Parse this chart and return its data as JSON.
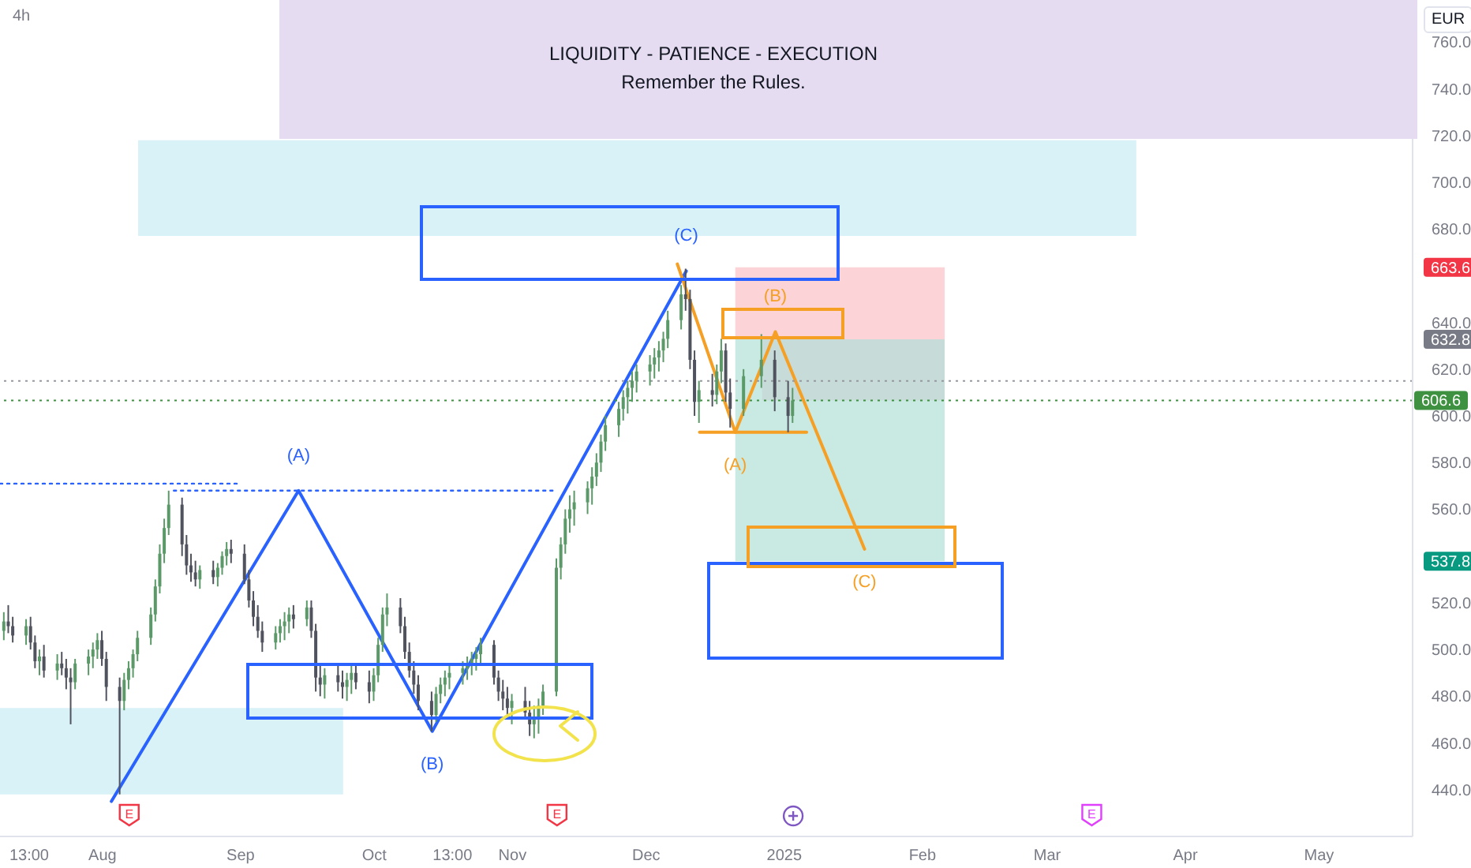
{
  "chart_data": {
    "type": "candlestick",
    "title": "4h",
    "ylabel": "EUR",
    "x": [
      "2024-07-10",
      "2024-07-11",
      "2024-07-12",
      "2024-07-15",
      "2024-07-16",
      "2024-07-17",
      "2024-07-18",
      "2024-07-19",
      "2024-07-22",
      "2024-07-23",
      "2024-07-24",
      "2024-07-25",
      "2024-07-26",
      "2024-07-29",
      "2024-07-30",
      "2024-07-31",
      "2024-08-01",
      "2024-08-02",
      "2024-08-05",
      "2024-08-06",
      "2024-08-07",
      "2024-08-08",
      "2024-08-09",
      "2024-08-12",
      "2024-08-13",
      "2024-08-14",
      "2024-08-15",
      "2024-08-16",
      "2024-08-19",
      "2024-08-20",
      "2024-08-21",
      "2024-08-22",
      "2024-08-23",
      "2024-08-26",
      "2024-08-27",
      "2024-08-28",
      "2024-08-29",
      "2024-08-30",
      "2024-09-02",
      "2024-09-03",
      "2024-09-04",
      "2024-09-05",
      "2024-09-06",
      "2024-09-09",
      "2024-09-10",
      "2024-09-11",
      "2024-09-12",
      "2024-09-13",
      "2024-09-16",
      "2024-09-17",
      "2024-09-18",
      "2024-09-19",
      "2024-09-20",
      "2024-09-23",
      "2024-09-24",
      "2024-09-25",
      "2024-09-26",
      "2024-09-27",
      "2024-09-30",
      "2024-10-01",
      "2024-10-02",
      "2024-10-03",
      "2024-10-04",
      "2024-10-07",
      "2024-10-08",
      "2024-10-09",
      "2024-10-10",
      "2024-10-11",
      "2024-10-14",
      "2024-10-15",
      "2024-10-16",
      "2024-10-17",
      "2024-10-18",
      "2024-10-21",
      "2024-10-22",
      "2024-10-23",
      "2024-10-24",
      "2024-10-25",
      "2024-10-28",
      "2024-10-29",
      "2024-10-30",
      "2024-10-31",
      "2024-11-01",
      "2024-11-04",
      "2024-11-05",
      "2024-11-06",
      "2024-11-07",
      "2024-11-08",
      "2024-11-11",
      "2024-11-12",
      "2024-11-13",
      "2024-11-14",
      "2024-11-15",
      "2024-11-18",
      "2024-11-19",
      "2024-11-20",
      "2024-11-21",
      "2024-11-22",
      "2024-11-25",
      "2024-11-26",
      "2024-11-27",
      "2024-11-28",
      "2024-11-29",
      "2024-12-02",
      "2024-12-03",
      "2024-12-04",
      "2024-12-05",
      "2024-12-06",
      "2024-12-09",
      "2024-12-10",
      "2024-12-11",
      "2024-12-12",
      "2024-12-13",
      "2024-12-16",
      "2024-12-17",
      "2024-12-18",
      "2024-12-19",
      "2024-12-20",
      "2024-12-23",
      "2024-12-27",
      "2024-12-30",
      "2025-01-02",
      "2025-01-03"
    ],
    "ohlc": [
      [
        508,
        516,
        504,
        512
      ],
      [
        512,
        519,
        507,
        510
      ],
      [
        510,
        514,
        503,
        506
      ],
      [
        506,
        513,
        502,
        510
      ],
      [
        510,
        514,
        500,
        503
      ],
      [
        503,
        506,
        492,
        495
      ],
      [
        495,
        500,
        489,
        497
      ],
      [
        497,
        502,
        488,
        491
      ],
      [
        491,
        498,
        487,
        494
      ],
      [
        494,
        499,
        489,
        492
      ],
      [
        492,
        496,
        483,
        488
      ],
      [
        488,
        492,
        468,
        486
      ],
      [
        486,
        496,
        483,
        494
      ],
      [
        494,
        500,
        489,
        497
      ],
      [
        497,
        503,
        492,
        500
      ],
      [
        500,
        507,
        496,
        504
      ],
      [
        504,
        508,
        493,
        496
      ],
      [
        496,
        499,
        478,
        484
      ],
      [
        484,
        488,
        438,
        478
      ],
      [
        478,
        490,
        474,
        487
      ],
      [
        487,
        495,
        483,
        492
      ],
      [
        492,
        500,
        488,
        498
      ],
      [
        498,
        508,
        495,
        505
      ],
      [
        505,
        518,
        502,
        515
      ],
      [
        515,
        530,
        512,
        527
      ],
      [
        527,
        545,
        524,
        541
      ],
      [
        541,
        556,
        537,
        552
      ],
      [
        552,
        568,
        549,
        562
      ],
      [
        562,
        565,
        540,
        545
      ],
      [
        545,
        549,
        532,
        536
      ],
      [
        536,
        541,
        529,
        533
      ],
      [
        533,
        538,
        527,
        530
      ],
      [
        530,
        536,
        526,
        534
      ],
      [
        534,
        538,
        528,
        531
      ],
      [
        531,
        537,
        527,
        535
      ],
      [
        535,
        542,
        532,
        540
      ],
      [
        540,
        546,
        536,
        543
      ],
      [
        543,
        547,
        537,
        541
      ],
      [
        541,
        545,
        528,
        530
      ],
      [
        530,
        534,
        518,
        521
      ],
      [
        521,
        525,
        510,
        514
      ],
      [
        514,
        519,
        505,
        508
      ],
      [
        508,
        512,
        499,
        503
      ],
      [
        503,
        510,
        500,
        507
      ],
      [
        507,
        513,
        503,
        510
      ],
      [
        510,
        516,
        504,
        512
      ],
      [
        512,
        518,
        507,
        515
      ],
      [
        515,
        519,
        509,
        513
      ],
      [
        513,
        521,
        510,
        518
      ],
      [
        518,
        521,
        505,
        508
      ],
      [
        508,
        511,
        482,
        488
      ],
      [
        488,
        494,
        480,
        485
      ],
      [
        485,
        492,
        479,
        489
      ],
      [
        489,
        494,
        482,
        486
      ],
      [
        486,
        491,
        479,
        484
      ],
      [
        484,
        490,
        478,
        487
      ],
      [
        487,
        493,
        481,
        490
      ],
      [
        490,
        494,
        483,
        486
      ],
      [
        486,
        491,
        477,
        482
      ],
      [
        482,
        492,
        478,
        489
      ],
      [
        489,
        505,
        486,
        502
      ],
      [
        502,
        518,
        499,
        515
      ],
      [
        515,
        524,
        510,
        518
      ],
      [
        518,
        522,
        507,
        510
      ],
      [
        510,
        514,
        496,
        499
      ],
      [
        499,
        503,
        488,
        491
      ],
      [
        491,
        495,
        481,
        485
      ],
      [
        485,
        489,
        474,
        478
      ],
      [
        478,
        482,
        465,
        472
      ],
      [
        472,
        484,
        469,
        481
      ],
      [
        481,
        488,
        477,
        485
      ],
      [
        485,
        491,
        480,
        488
      ],
      [
        488,
        493,
        483,
        490
      ],
      [
        490,
        495,
        485,
        492
      ],
      [
        492,
        497,
        487,
        494
      ],
      [
        494,
        499,
        489,
        496
      ],
      [
        496,
        501,
        491,
        498
      ],
      [
        498,
        505,
        494,
        502
      ],
      [
        502,
        504,
        485,
        488
      ],
      [
        488,
        491,
        478,
        482
      ],
      [
        482,
        487,
        474,
        479
      ],
      [
        479,
        484,
        470,
        475
      ],
      [
        475,
        481,
        468,
        478
      ],
      [
        478,
        484,
        470,
        473
      ],
      [
        473,
        478,
        463,
        468
      ],
      [
        468,
        476,
        462,
        471
      ],
      [
        471,
        479,
        464,
        476
      ],
      [
        476,
        485,
        472,
        482
      ],
      [
        482,
        539,
        480,
        535
      ],
      [
        535,
        548,
        530,
        545
      ],
      [
        545,
        560,
        541,
        556
      ],
      [
        556,
        566,
        550,
        560
      ],
      [
        560,
        568,
        553,
        563
      ],
      [
        563,
        572,
        558,
        569
      ],
      [
        569,
        578,
        562,
        574
      ],
      [
        574,
        584,
        570,
        580
      ],
      [
        580,
        592,
        576,
        589
      ],
      [
        589,
        600,
        585,
        596
      ],
      [
        596,
        606,
        591,
        603
      ],
      [
        603,
        611,
        598,
        608
      ],
      [
        608,
        615,
        601,
        612
      ],
      [
        612,
        619,
        606,
        615
      ],
      [
        615,
        622,
        610,
        619
      ],
      [
        619,
        626,
        613,
        622
      ],
      [
        622,
        629,
        616,
        625
      ],
      [
        625,
        632,
        619,
        628
      ],
      [
        628,
        636,
        623,
        633
      ],
      [
        633,
        645,
        629,
        641
      ],
      [
        641,
        656,
        637,
        652
      ],
      [
        652,
        663,
        645,
        650
      ],
      [
        650,
        654,
        620,
        624
      ],
      [
        624,
        628,
        600,
        606
      ],
      [
        606,
        615,
        597,
        611
      ],
      [
        611,
        618,
        604,
        609
      ],
      [
        609,
        622,
        605,
        619
      ],
      [
        619,
        633,
        614,
        628
      ],
      [
        628,
        631,
        606,
        610
      ],
      [
        610,
        616,
        595,
        603
      ],
      [
        603,
        620,
        600,
        617
      ],
      [
        617,
        635,
        612,
        624
      ],
      [
        624,
        628,
        602,
        608
      ],
      [
        608,
        615,
        593,
        600
      ],
      [
        600,
        612,
        597,
        606.6
      ]
    ],
    "colors": [
      "#5b9a68",
      "#50535e",
      "#50535e",
      "#5b9a68",
      "#50535e",
      "#50535e",
      "#5b9a68",
      "#50535e",
      "#5b9a68",
      "#50535e",
      "#50535e",
      "#50535e",
      "#5b9a68",
      "#5b9a68",
      "#5b9a68",
      "#5b9a68",
      "#50535e",
      "#50535e",
      "#50535e",
      "#5b9a68",
      "#5b9a68",
      "#5b9a68",
      "#5b9a68",
      "#5b9a68",
      "#5b9a68",
      "#5b9a68",
      "#5b9a68",
      "#5b9a68",
      "#50535e",
      "#50535e",
      "#50535e",
      "#50535e",
      "#5b9a68",
      "#50535e",
      "#5b9a68",
      "#5b9a68",
      "#5b9a68",
      "#50535e",
      "#50535e",
      "#50535e",
      "#50535e",
      "#50535e",
      "#50535e",
      "#5b9a68",
      "#5b9a68",
      "#5b9a68",
      "#5b9a68",
      "#50535e",
      "#5b9a68",
      "#50535e",
      "#50535e",
      "#50535e",
      "#5b9a68",
      "#50535e",
      "#50535e",
      "#5b9a68",
      "#5b9a68",
      "#50535e",
      "#50535e",
      "#5b9a68",
      "#5b9a68",
      "#5b9a68",
      "#5b9a68",
      "#50535e",
      "#50535e",
      "#50535e",
      "#50535e",
      "#50535e",
      "#50535e",
      "#5b9a68",
      "#5b9a68",
      "#5b9a68",
      "#5b9a68",
      "#5b9a68",
      "#5b9a68",
      "#5b9a68",
      "#5b9a68",
      "#5b9a68",
      "#50535e",
      "#50535e",
      "#50535e",
      "#50535e",
      "#5b9a68",
      "#50535e",
      "#50535e",
      "#5b9a68",
      "#5b9a68",
      "#5b9a68",
      "#5b9a68",
      "#5b9a68",
      "#5b9a68",
      "#5b9a68",
      "#5b9a68",
      "#5b9a68",
      "#5b9a68",
      "#5b9a68",
      "#5b9a68",
      "#5b9a68",
      "#5b9a68",
      "#5b9a68",
      "#5b9a68",
      "#5b9a68",
      "#5b9a68",
      "#5b9a68",
      "#5b9a68",
      "#5b9a68",
      "#5b9a68",
      "#5b9a68",
      "#5b9a68",
      "#50535e",
      "#50535e",
      "#50535e",
      "#5b9a68",
      "#50535e",
      "#5b9a68",
      "#5b9a68",
      "#50535e",
      "#50535e",
      "#5b9a68",
      "#5b9a68",
      "#50535e",
      "#50535e",
      "#5b9a68"
    ],
    "series": [
      {
        "type": "line",
        "x": [
          "2024-08-09",
          "2025-03-21"
        ],
        "values": [
          null,
          null
        ],
        "lower": [
          677,
          677
        ],
        "upper": [
          718,
          718
        ],
        "color": "#4cc3d9"
      },
      {
        "type": "line",
        "x": [
          "2024-07-09",
          "2024-09-24"
        ],
        "values": [
          null,
          null
        ],
        "lower": [
          438,
          438
        ],
        "upper": [
          475,
          475
        ],
        "color": "#4cc3d9"
      },
      {
        "type": "line",
        "x": [
          "2024-12-21",
          "2025-02-06"
        ],
        "values": [
          null,
          null
        ],
        "lower": [
          632.8,
          632.8
        ],
        "upper": [
          663.6,
          663.6
        ],
        "color": "#f23645"
      },
      {
        "type": "line",
        "x": [
          "2024-12-21",
          "2024-12-27",
          "2024-12-27",
          "2025-02-06"
        ],
        "values": [
          null,
          null,
          null,
          null
        ],
        "lower": [
          537.8,
          537.8,
          537.8,
          537.8
        ],
        "upper": [
          632.8,
          632.8,
          606.6,
          606.6
        ],
        "color": "#089981"
      },
      {
        "type": "line",
        "x": [
          "2024-12-27",
          "2025-02-06"
        ],
        "values": [
          null,
          null
        ],
        "lower": [
          606.6,
          606.6
        ],
        "upper": [
          632.8,
          632.8
        ],
        "color": "#00604f"
      },
      {
        "type": "line",
        "x": [
          "2024-07-09",
          "2024-09-01"
        ],
        "values": [
          571,
          571
        ],
        "color": "#2962ff",
        "line_style": "dotted"
      },
      {
        "type": "line",
        "x": [
          "2024-08-17",
          "2024-11-11"
        ],
        "values": [
          568,
          568
        ],
        "color": "#2962ff",
        "line_style": "dotted"
      },
      {
        "type": "line",
        "x": [
          "2024-08-03",
          "2024-09-14",
          "2024-10-14",
          "2024-12-10"
        ],
        "values": [
          435,
          568,
          465,
          662
        ],
        "color": "#2962ff"
      },
      {
        "type": "line",
        "x": [
          "2024-12-08",
          "2024-12-21",
          "2024-12-30",
          "2025-01-19"
        ],
        "values": [
          665,
          593,
          636,
          543
        ],
        "color": "#f5a025"
      },
      {
        "type": "line",
        "x": [
          "2024-12-13",
          "2025-01-06"
        ],
        "values": [
          593,
          593
        ],
        "color": "#f5a025"
      }
    ],
    "annotations": [
      "LIQUIDITY - PATIENCE - EXECUTION",
      "Remember the Rules.",
      {
        "text": "(A)",
        "x": "2024-09-14",
        "y": 568
      },
      {
        "text": "(B)",
        "x": "2024-10-14",
        "y": 465
      },
      {
        "text": "(C)",
        "x": "2024-12-10",
        "y": 662
      },
      {
        "text": "(A)",
        "x": "2024-12-21",
        "y": 593
      },
      {
        "text": "(B)",
        "x": "2024-12-30",
        "y": 636
      },
      {
        "text": "(C)",
        "x": "2025-01-19",
        "y": 543
      },
      {
        "text": "E",
        "x": "2024-08-07"
      },
      {
        "text": "E",
        "x": "2024-11-11"
      },
      {
        "text": "E",
        "x": "2025-03-11"
      }
    ],
    "ref_lines": [
      {
        "axis": "y",
        "value": 615,
        "color": "#9598a1",
        "line_style": "dotted"
      },
      {
        "axis": "y",
        "value": 606.6,
        "label": "606.6",
        "color": "#3f9142",
        "line_style": "dotted"
      }
    ],
    "xlim": [
      "2024-07-09",
      "2025-05-22"
    ],
    "xticks": [
      {
        "value": "2024-07-15T13:00",
        "label": "13:00"
      },
      {
        "value": "2024-08-01",
        "label": "Aug"
      },
      {
        "value": "2024-09-01",
        "label": "Sep"
      },
      {
        "value": "2024-10-01",
        "label": "Oct"
      },
      {
        "value": "2024-10-18T13:00",
        "label": "13:00"
      },
      {
        "value": "2024-11-01",
        "label": "Nov"
      },
      {
        "value": "2024-12-01",
        "label": "Dec"
      },
      {
        "value": "2025-01-01",
        "label": "2025"
      },
      {
        "value": "2025-02-01",
        "label": "Feb"
      },
      {
        "value": "2025-03-01",
        "label": "Mar"
      },
      {
        "value": "2025-04-01",
        "label": "Apr"
      },
      {
        "value": "2025-05-01",
        "label": "May"
      }
    ],
    "ylim": [
      420,
      778
    ],
    "yticks": [
      {
        "value": 440,
        "label": "440.0"
      },
      {
        "value": 460,
        "label": "460.0"
      },
      {
        "value": 480,
        "label": "480.0"
      },
      {
        "value": 500,
        "label": "500.0"
      },
      {
        "value": 520,
        "label": "520.0"
      },
      537.8,
      {
        "value": 560,
        "label": "560.0"
      },
      {
        "value": 580,
        "label": "580.0"
      },
      {
        "value": 600,
        "label": "600.0"
      },
      {
        "value": 620,
        "label": "620.0"
      },
      632.8,
      {
        "value": 640,
        "label": "640.0"
      },
      663.6,
      {
        "value": 680,
        "label": "680.0"
      },
      {
        "value": 700,
        "label": "700.0"
      },
      {
        "value": 720,
        "label": "720.0"
      },
      {
        "value": 740,
        "label": "740.0"
      },
      {
        "value": 760,
        "label": "760.0"
      }
    ]
  }
}
